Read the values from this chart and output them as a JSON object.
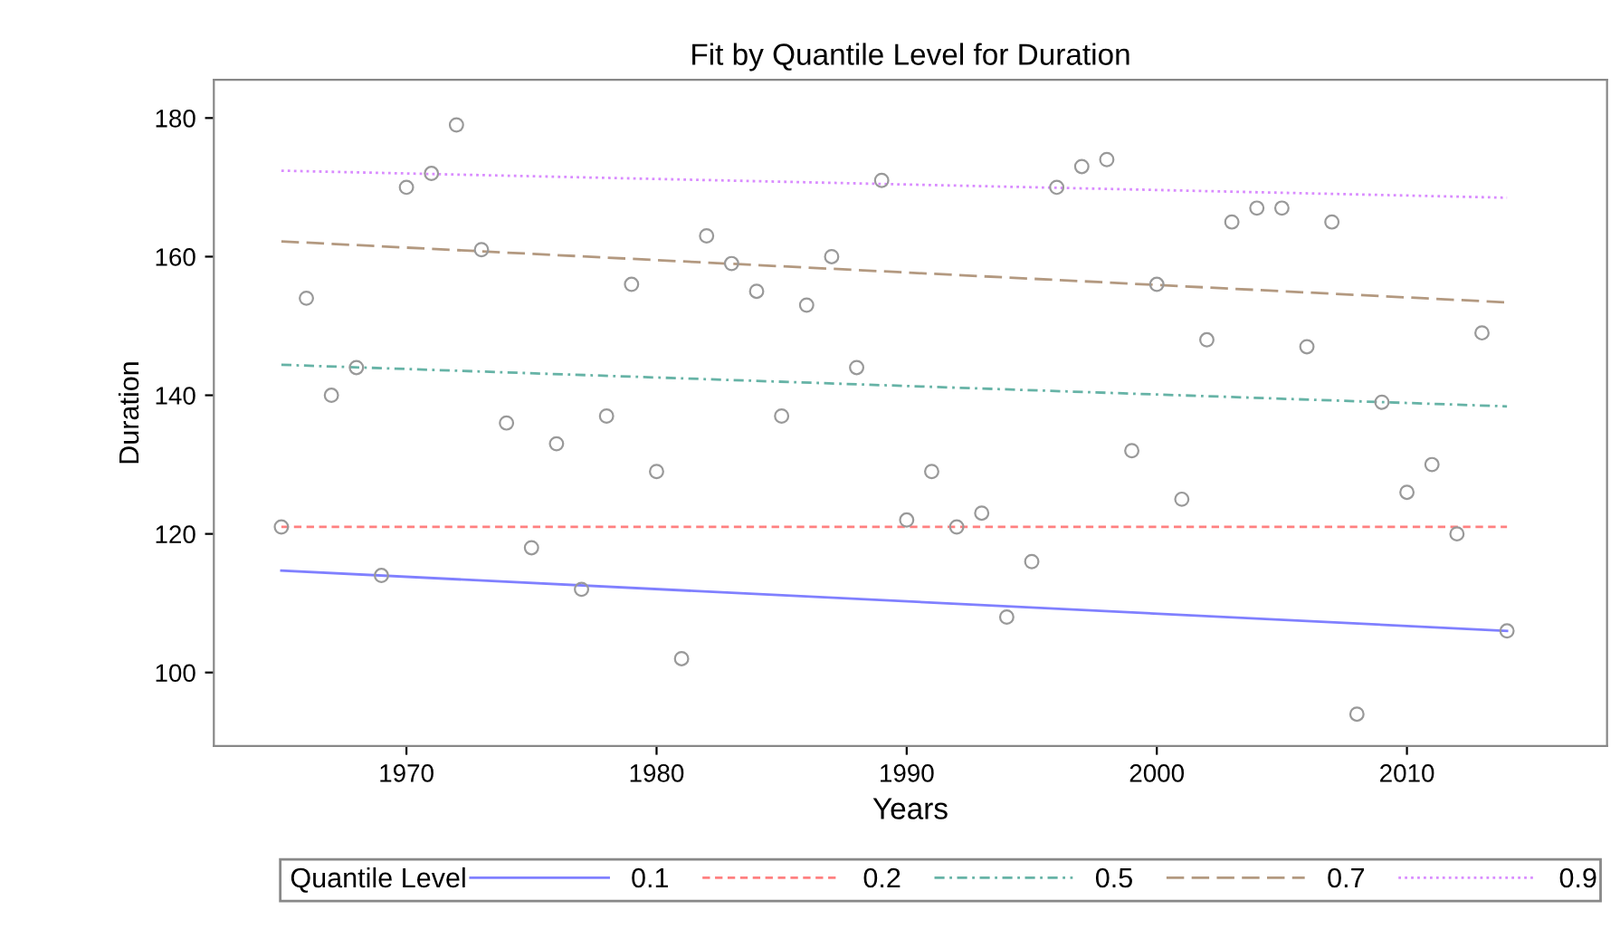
{
  "chart_data": {
    "type": "scatter",
    "title": "Fit by Quantile Level for Duration",
    "xlabel": "Years",
    "ylabel": "Duration",
    "legend_title": "Quantile Level",
    "xlim": [
      1962.3,
      2018
    ],
    "ylim": [
      89.4,
      185.5
    ],
    "xticks": [
      1970,
      1980,
      1990,
      2000,
      2010
    ],
    "yticks": [
      100,
      120,
      140,
      160,
      180
    ],
    "grid": false,
    "legend": "bottom",
    "series": [
      {
        "color": "#999999",
        "marker": "circle",
        "x": [
          1965,
          1966,
          1967,
          1968,
          1969,
          1970,
          1971,
          1972,
          1973,
          1974,
          1975,
          1976,
          1977,
          1978,
          1979,
          1980,
          1981,
          1982,
          1983,
          1984,
          1985,
          1986,
          1987,
          1988,
          1989,
          1990,
          1991,
          1992,
          1993,
          1994,
          1995,
          1996,
          1997,
          1998,
          1999,
          2000,
          2001,
          2002,
          2003,
          2004,
          2005,
          2006,
          2007,
          2008,
          2009,
          2010,
          2011,
          2012,
          2013,
          2014
        ],
        "values": [
          121,
          154,
          140,
          144,
          114,
          170,
          172,
          179,
          161,
          136,
          118,
          133,
          112,
          137,
          156,
          129,
          102,
          163,
          159,
          155,
          137,
          153,
          160,
          144,
          171,
          122,
          129,
          121,
          123,
          108,
          116,
          170,
          173,
          174,
          132,
          156,
          125,
          148,
          165,
          167,
          167,
          147,
          165,
          94,
          139,
          126,
          130,
          120,
          149,
          106
        ]
      },
      {
        "type": "line",
        "name": "0.1",
        "color": "#8080ff",
        "line_style": "solid",
        "x": [
          1965,
          2014
        ],
        "values": [
          114.7,
          106
        ]
      },
      {
        "type": "line",
        "name": "0.2",
        "color": "#ff8080",
        "line_style": "dashed",
        "x": [
          1965,
          2014
        ],
        "values": [
          121,
          121
        ]
      },
      {
        "type": "line",
        "name": "0.5",
        "color": "#66b3a6",
        "line_style": "dashdot",
        "x": [
          1965,
          2014
        ],
        "values": [
          144.4,
          138.4
        ]
      },
      {
        "type": "line",
        "name": "0.7",
        "color": "#b39980",
        "line_style": "longdash",
        "x": [
          1965,
          2014
        ],
        "values": [
          162.2,
          153.4
        ]
      },
      {
        "type": "line",
        "name": "0.9",
        "color": "#d98cff",
        "line_style": "dotted",
        "x": [
          1965,
          2014
        ],
        "values": [
          172.4,
          168.5
        ]
      }
    ]
  }
}
